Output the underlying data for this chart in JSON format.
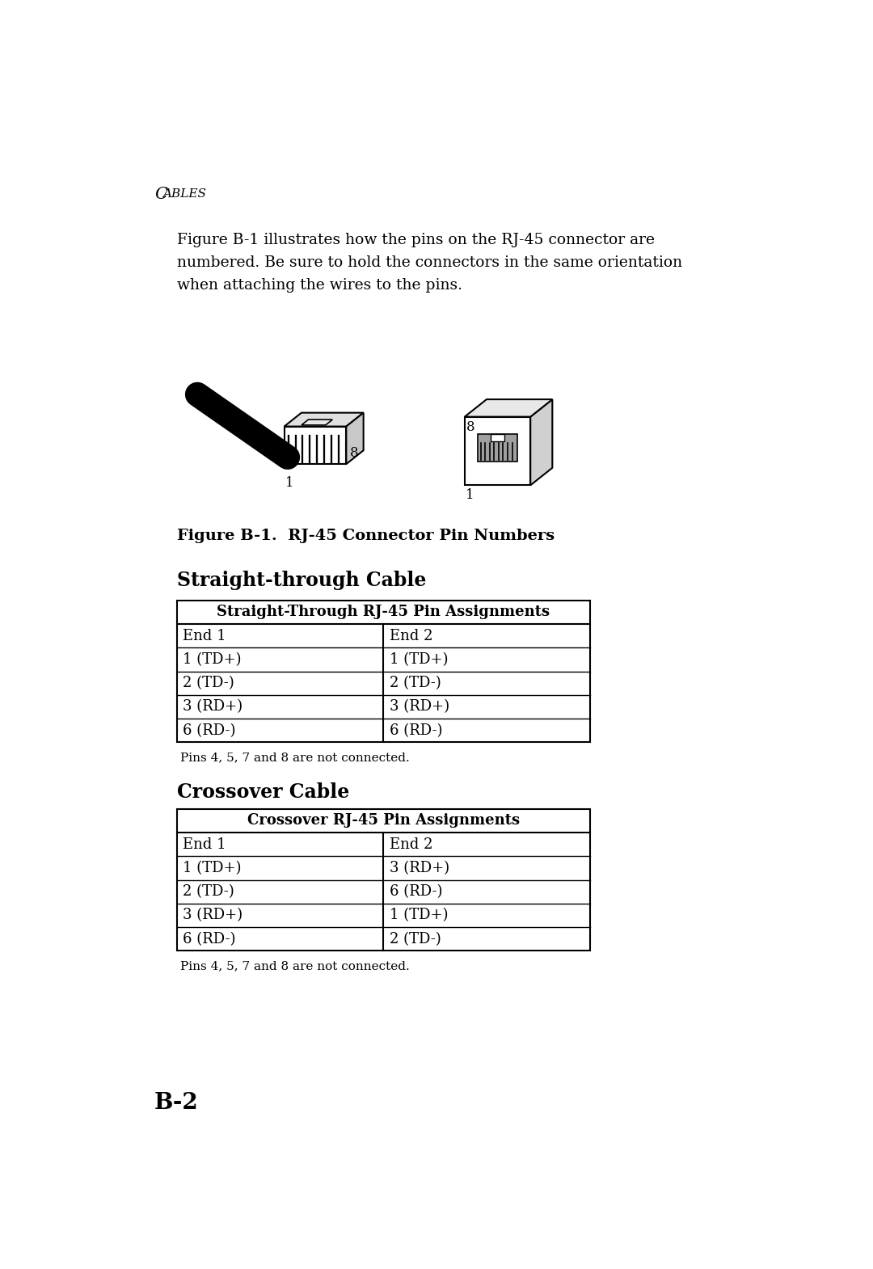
{
  "bg_color": "#ffffff",
  "page_title": "Cables",
  "intro_text": "Figure B-1 illustrates how the pins on the RJ-45 connector are\nnumbered. Be sure to hold the connectors in the same orientation\nwhen attaching the wires to the pins.",
  "figure_caption": "Figure B-1.  RJ-45 Connector Pin Numbers",
  "straight_title": "Straight-through Cable",
  "straight_header": "Straight-Through RJ-45 Pin Assignments",
  "straight_col1": [
    "End 1",
    "1 (TD+)",
    "2 (TD-)",
    "3 (RD+)",
    "6 (RD-)"
  ],
  "straight_col2": [
    "End 2",
    "1 (TD+)",
    "2 (TD-)",
    "3 (RD+)",
    "6 (RD-)"
  ],
  "straight_note": "Pins 4, 5, 7 and 8 are not connected.",
  "crossover_title": "Crossover Cable",
  "crossover_header": "Crossover RJ-45 Pin Assignments",
  "crossover_col1": [
    "End 1",
    "1 (TD+)",
    "2 (TD-)",
    "3 (RD+)",
    "6 (RD-)"
  ],
  "crossover_col2": [
    "End 2",
    "3 (RD+)",
    "6 (RD-)",
    "1 (TD+)",
    "2 (TD-)"
  ],
  "crossover_note": "Pins 4, 5, 7 and 8 are not connected.",
  "page_num": "B-2"
}
